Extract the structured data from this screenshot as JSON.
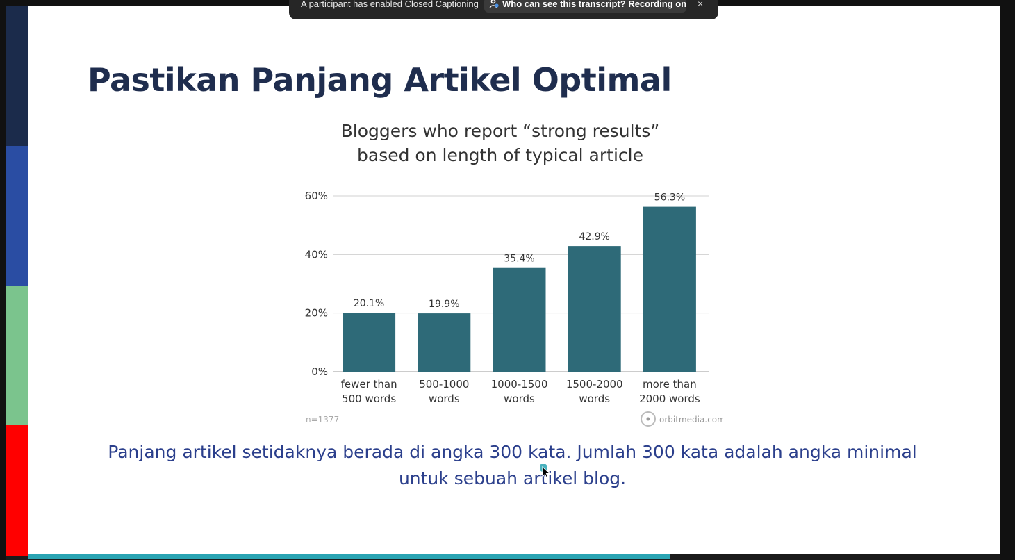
{
  "zoom_banner": {
    "cc_text": "A participant has enabled Closed Captioning",
    "transcript_text": "Who can see this transcript? Recording on",
    "close_glyph": "×"
  },
  "slide": {
    "title": "Pastikan Panjang Artikel Optimal",
    "caption": "Panjang artikel setidaknya berada di angka 300 kata. Jumlah 300 kata adalah angka minimal untuk sebuah artikel blog."
  },
  "side_stripes": {
    "colors": [
      "#1b2b4b",
      "#2a4da3",
      "#7bc48d",
      "#ff0000"
    ]
  },
  "progress": {
    "fraction": 0.66,
    "color": "#2aa4b3"
  },
  "chart_data": {
    "type": "bar",
    "title": "Bloggers who report “strong results” based on length of typical article",
    "title_lines": [
      "Bloggers who report “strong results”",
      "based on length of typical article"
    ],
    "categories": [
      [
        "fewer than",
        "500 words"
      ],
      [
        "500-1000",
        "words"
      ],
      [
        "1000-1500",
        "words"
      ],
      [
        "1500-2000",
        "words"
      ],
      [
        "more than",
        "2000 words"
      ]
    ],
    "values": [
      20.1,
      19.9,
      35.4,
      42.9,
      56.3
    ],
    "value_labels": [
      "20.1%",
      "19.9%",
      "35.4%",
      "42.9%",
      "56.3%"
    ],
    "ytick_values": [
      0,
      20,
      40,
      60
    ],
    "ytick_labels": [
      "0%",
      "20%",
      "40%",
      "60%"
    ],
    "ylim": [
      0,
      60
    ],
    "bar_color": "#2e6a78",
    "grid": true,
    "footnote": "n=1377",
    "source": "orbitmedia.com"
  }
}
